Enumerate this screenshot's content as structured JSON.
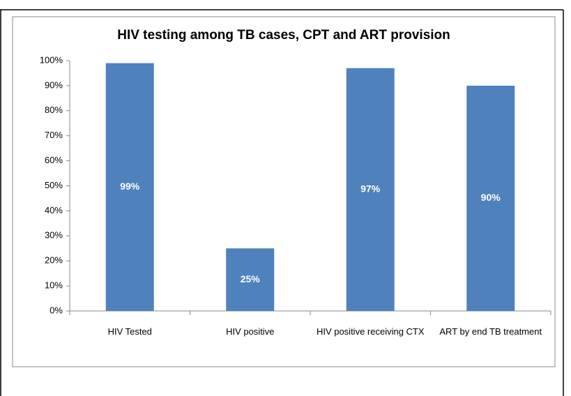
{
  "chart_data": {
    "type": "bar",
    "title": "HIV testing among TB cases, CPT and ART provision",
    "categories": [
      "HIV Tested",
      "HIV positive",
      "HIV positive receiving CTX",
      "ART by end TB treatment"
    ],
    "values": [
      99,
      25,
      97,
      90
    ],
    "value_labels": [
      "99%",
      "25%",
      "97%",
      "90%"
    ],
    "color": "#4f81bd",
    "ylim": [
      0,
      100
    ],
    "yticks": [
      {
        "value": 0,
        "label": "0%"
      },
      {
        "value": 10,
        "label": "10%"
      },
      {
        "value": 20,
        "label": "20%"
      },
      {
        "value": 30,
        "label": "30%"
      },
      {
        "value": 40,
        "label": "40%"
      },
      {
        "value": 50,
        "label": "50%"
      },
      {
        "value": 60,
        "label": "60%"
      },
      {
        "value": 70,
        "label": "70%"
      },
      {
        "value": 80,
        "label": "80%"
      },
      {
        "value": 90,
        "label": "90%"
      },
      {
        "value": 100,
        "label": "100%"
      }
    ],
    "grid": false
  }
}
